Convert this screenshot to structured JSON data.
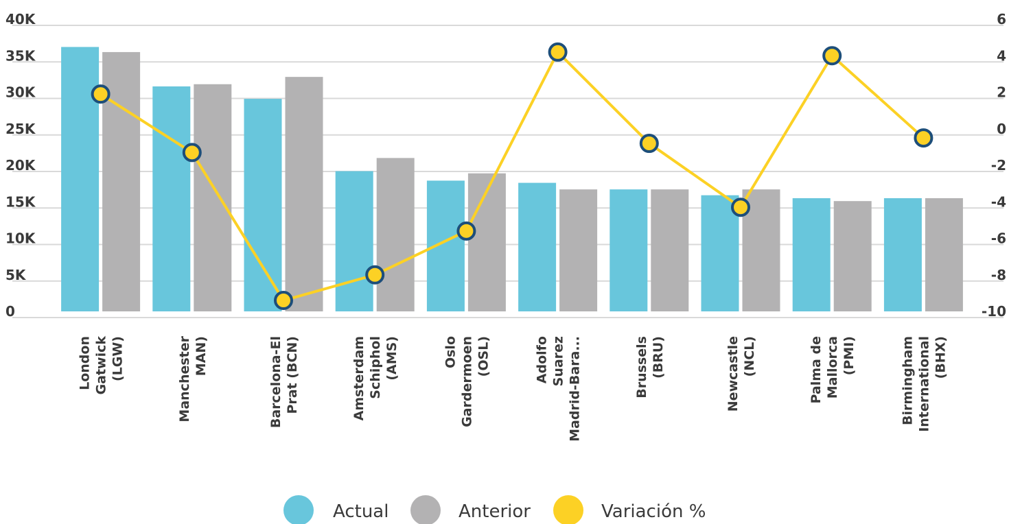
{
  "chart_data": {
    "type": "bar",
    "categories": [
      [
        "London",
        "Gatwick",
        "(LGW)"
      ],
      [
        "Manchester",
        "MAN)"
      ],
      [
        "Barcelona-El",
        "Prat (BCN)"
      ],
      [
        "Amsterdam",
        "Schiphol",
        "(AMS)"
      ],
      [
        "Oslo",
        "Gardermoen",
        "(OSL)"
      ],
      [
        "Adolfo",
        "Suarez",
        "Madrid-Bara..."
      ],
      [
        "Brussels",
        "(BRU)"
      ],
      [
        "Newcastle",
        "(NCL)"
      ],
      [
        "Palma de",
        "Mallorca",
        "(PMI)"
      ],
      [
        "Birmingham",
        "International",
        "(BHX)"
      ]
    ],
    "series": [
      {
        "name": "Actual",
        "type": "bar",
        "axis": "left",
        "color": "#68c6dc",
        "values": [
          36200,
          30800,
          29100,
          19200,
          17900,
          17600,
          16700,
          15900,
          15500,
          15500
        ]
      },
      {
        "name": "Anterior",
        "type": "bar",
        "axis": "left",
        "color": "#b3b2b3",
        "values": [
          35500,
          31100,
          32100,
          21000,
          18900,
          16700,
          16700,
          16700,
          15100,
          15500
        ]
      },
      {
        "name": "Variación %",
        "type": "line",
        "axis": "right",
        "color": "#fcd125",
        "marker_fill": "#fcd125",
        "marker_stroke": "#1d4e7a",
        "values": [
          1.9,
          -1.3,
          -9.4,
          -8.0,
          -5.6,
          4.2,
          -0.8,
          -4.3,
          4.0,
          -0.5
        ]
      }
    ],
    "y_left": {
      "ylim": [
        0,
        40000
      ],
      "ticks": [
        "0",
        "5K",
        "10K",
        "15K",
        "20K",
        "25K",
        "30K",
        "35K",
        "40K"
      ]
    },
    "y_right": {
      "ylim": [
        -10,
        6
      ],
      "ticks": [
        "-10",
        "-8",
        "-6",
        "-4",
        "-2",
        "0",
        "2",
        "4",
        "6"
      ]
    },
    "grid": true,
    "legend": "bottom-center"
  }
}
